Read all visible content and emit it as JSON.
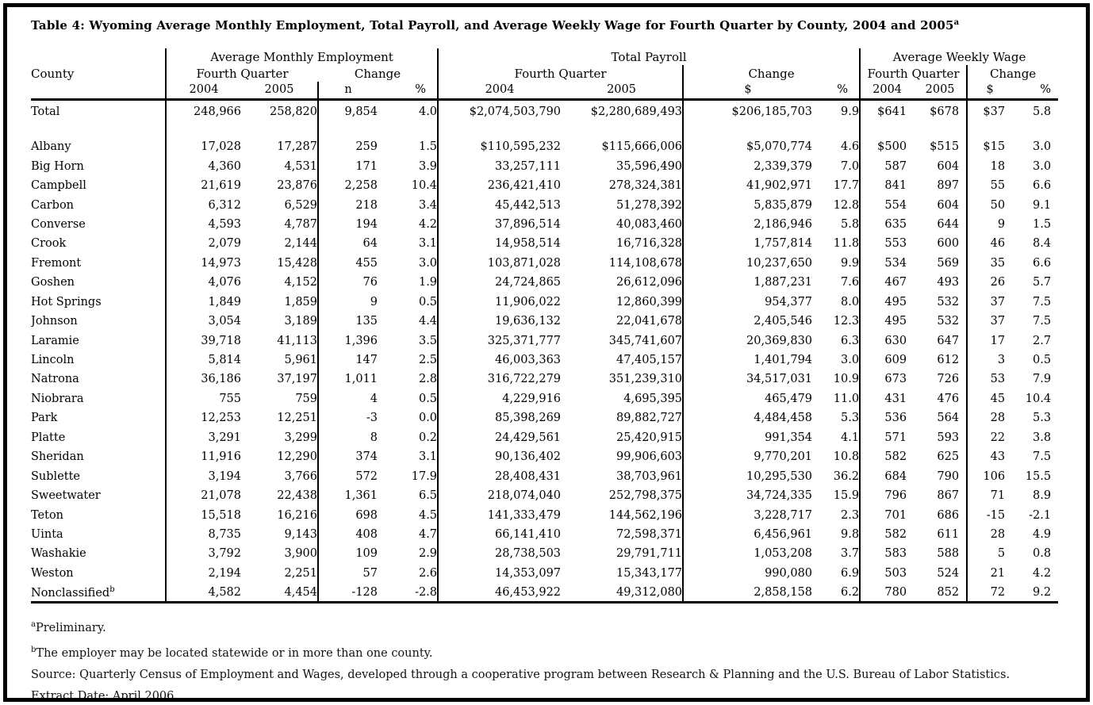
{
  "title": {
    "text": "Table 4: Wyoming Average Monthly Employment, Total Payroll, and Average Weekly Wage for Fourth Quarter by County, 2004 and 2005",
    "sup": "a"
  },
  "header": {
    "county": "County",
    "sections": [
      {
        "label": "Average Monthly Employment",
        "fq": "Fourth Quarter",
        "change": "Change",
        "cols": [
          "2004",
          "2005",
          "n",
          "%"
        ]
      },
      {
        "label": "Total Payroll",
        "fq": "Fourth Quarter",
        "change": "Change",
        "cols": [
          "2004",
          "2005",
          "$",
          "%"
        ]
      },
      {
        "label": "Average Weekly Wage",
        "fq": "Fourth Quarter",
        "change": "Change",
        "cols": [
          "2004",
          "2005",
          "$",
          "%"
        ]
      }
    ]
  },
  "total_row": {
    "label": "Total",
    "values": [
      "248,966",
      "258,820",
      "9,854",
      "4.0",
      "$2,074,503,790",
      "$2,280,689,493",
      "$206,185,703",
      "9.9",
      "$641",
      "$678",
      "$37",
      "5.8"
    ]
  },
  "rows": [
    {
      "county": "Albany",
      "values": [
        "17,028",
        "17,287",
        "259",
        "1.5",
        "$110,595,232",
        "$115,666,006",
        "$5,070,774",
        "4.6",
        "$500",
        "$515",
        "$15",
        "3.0"
      ]
    },
    {
      "county": "Big Horn",
      "values": [
        "4,360",
        "4,531",
        "171",
        "3.9",
        "33,257,111",
        "35,596,490",
        "2,339,379",
        "7.0",
        "587",
        "604",
        "18",
        "3.0"
      ]
    },
    {
      "county": "Campbell",
      "values": [
        "21,619",
        "23,876",
        "2,258",
        "10.4",
        "236,421,410",
        "278,324,381",
        "41,902,971",
        "17.7",
        "841",
        "897",
        "55",
        "6.6"
      ]
    },
    {
      "county": "Carbon",
      "values": [
        "6,312",
        "6,529",
        "218",
        "3.4",
        "45,442,513",
        "51,278,392",
        "5,835,879",
        "12.8",
        "554",
        "604",
        "50",
        "9.1"
      ]
    },
    {
      "county": "Converse",
      "values": [
        "4,593",
        "4,787",
        "194",
        "4.2",
        "37,896,514",
        "40,083,460",
        "2,186,946",
        "5.8",
        "635",
        "644",
        "9",
        "1.5"
      ]
    },
    {
      "county": "Crook",
      "values": [
        "2,079",
        "2,144",
        "64",
        "3.1",
        "14,958,514",
        "16,716,328",
        "1,757,814",
        "11.8",
        "553",
        "600",
        "46",
        "8.4"
      ]
    },
    {
      "county": "Fremont",
      "values": [
        "14,973",
        "15,428",
        "455",
        "3.0",
        "103,871,028",
        "114,108,678",
        "10,237,650",
        "9.9",
        "534",
        "569",
        "35",
        "6.6"
      ]
    },
    {
      "county": "Goshen",
      "values": [
        "4,076",
        "4,152",
        "76",
        "1.9",
        "24,724,865",
        "26,612,096",
        "1,887,231",
        "7.6",
        "467",
        "493",
        "26",
        "5.7"
      ]
    },
    {
      "county": "Hot Springs",
      "values": [
        "1,849",
        "1,859",
        "9",
        "0.5",
        "11,906,022",
        "12,860,399",
        "954,377",
        "8.0",
        "495",
        "532",
        "37",
        "7.5"
      ]
    },
    {
      "county": "Johnson",
      "values": [
        "3,054",
        "3,189",
        "135",
        "4.4",
        "19,636,132",
        "22,041,678",
        "2,405,546",
        "12.3",
        "495",
        "532",
        "37",
        "7.5"
      ]
    },
    {
      "county": "Laramie",
      "values": [
        "39,718",
        "41,113",
        "1,396",
        "3.5",
        "325,371,777",
        "345,741,607",
        "20,369,830",
        "6.3",
        "630",
        "647",
        "17",
        "2.7"
      ]
    },
    {
      "county": "Lincoln",
      "values": [
        "5,814",
        "5,961",
        "147",
        "2.5",
        "46,003,363",
        "47,405,157",
        "1,401,794",
        "3.0",
        "609",
        "612",
        "3",
        "0.5"
      ]
    },
    {
      "county": "Natrona",
      "values": [
        "36,186",
        "37,197",
        "1,011",
        "2.8",
        "316,722,279",
        "351,239,310",
        "34,517,031",
        "10.9",
        "673",
        "726",
        "53",
        "7.9"
      ]
    },
    {
      "county": "Niobrara",
      "values": [
        "755",
        "759",
        "4",
        "0.5",
        "4,229,916",
        "4,695,395",
        "465,479",
        "11.0",
        "431",
        "476",
        "45",
        "10.4"
      ]
    },
    {
      "county": "Park",
      "values": [
        "12,253",
        "12,251",
        "-3",
        "0.0",
        "85,398,269",
        "89,882,727",
        "4,484,458",
        "5.3",
        "536",
        "564",
        "28",
        "5.3"
      ]
    },
    {
      "county": "Platte",
      "values": [
        "3,291",
        "3,299",
        "8",
        "0.2",
        "24,429,561",
        "25,420,915",
        "991,354",
        "4.1",
        "571",
        "593",
        "22",
        "3.8"
      ]
    },
    {
      "county": "Sheridan",
      "values": [
        "11,916",
        "12,290",
        "374",
        "3.1",
        "90,136,402",
        "99,906,603",
        "9,770,201",
        "10.8",
        "582",
        "625",
        "43",
        "7.5"
      ]
    },
    {
      "county": "Sublette",
      "values": [
        "3,194",
        "3,766",
        "572",
        "17.9",
        "28,408,431",
        "38,703,961",
        "10,295,530",
        "36.2",
        "684",
        "790",
        "106",
        "15.5"
      ]
    },
    {
      "county": "Sweetwater",
      "values": [
        "21,078",
        "22,438",
        "1,361",
        "6.5",
        "218,074,040",
        "252,798,375",
        "34,724,335",
        "15.9",
        "796",
        "867",
        "71",
        "8.9"
      ]
    },
    {
      "county": "Teton",
      "values": [
        "15,518",
        "16,216",
        "698",
        "4.5",
        "141,333,479",
        "144,562,196",
        "3,228,717",
        "2.3",
        "701",
        "686",
        "-15",
        "-2.1"
      ]
    },
    {
      "county": "Uinta",
      "values": [
        "8,735",
        "9,143",
        "408",
        "4.7",
        "66,141,410",
        "72,598,371",
        "6,456,961",
        "9.8",
        "582",
        "611",
        "28",
        "4.9"
      ]
    },
    {
      "county": "Washakie",
      "values": [
        "3,792",
        "3,900",
        "109",
        "2.9",
        "28,738,503",
        "29,791,711",
        "1,053,208",
        "3.7",
        "583",
        "588",
        "5",
        "0.8"
      ]
    },
    {
      "county": "Weston",
      "values": [
        "2,194",
        "2,251",
        "57",
        "2.6",
        "14,353,097",
        "15,343,177",
        "990,080",
        "6.9",
        "503",
        "524",
        "21",
        "4.2"
      ]
    },
    {
      "county": "Nonclassified",
      "sup": "b",
      "values": [
        "4,582",
        "4,454",
        "-128",
        "-2.8",
        "46,453,922",
        "49,312,080",
        "2,858,158",
        "6.2",
        "780",
        "852",
        "72",
        "9.2"
      ]
    }
  ],
  "footnotes": [
    {
      "sup": "a",
      "text": "Preliminary."
    },
    {
      "sup": "b",
      "text": "The employer may be located statewide or in more than one county."
    },
    {
      "text": "Source: Quarterly Census of Employment and Wages, developed through a cooperative program between Research & Planning and the U.S. Bureau of Labor Statistics."
    },
    {
      "text": "Extract Date: April 2006"
    }
  ]
}
